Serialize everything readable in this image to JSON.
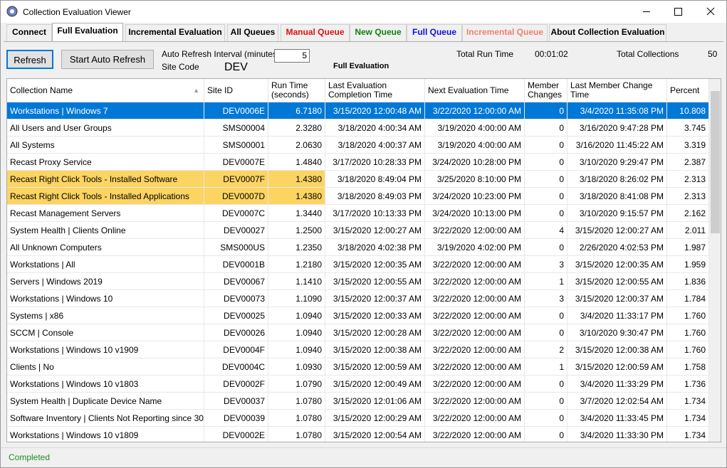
{
  "window": {
    "title": "Collection Evaluation Viewer"
  },
  "tabs": [
    "Connect",
    "Full Evaluation",
    "Incremental Evaluation",
    "All Queues",
    "Manual Queue",
    "New Queue",
    "Full Queue",
    "Incremental Queue",
    "About Collection Evaluation"
  ],
  "toolbar": {
    "refresh": "Refresh",
    "auto_refresh": "Start Auto Refresh",
    "interval_label": "Auto Refresh Interval (minutes)",
    "interval_value": "5",
    "site_code_label": "Site Code",
    "site_code": "DEV",
    "mode": "Full Evaluation",
    "total_run_time_label": "Total Run Time",
    "total_run_time": "00:01:02",
    "total_collections_label": "Total Collections",
    "total_collections": "50"
  },
  "table": {
    "columns": [
      "Collection Name",
      "Site ID",
      "Run Time (seconds)",
      "Last Evaluation Completion Time",
      "Next Evaluation Time",
      "Member Changes",
      "Last Member Change Time",
      "Percent"
    ],
    "rows": [
      [
        "Workstations | Windows 7",
        "DEV0006E",
        "6.7180",
        "3/15/2020 12:00:48 AM",
        "3/22/2020 12:00:00 AM",
        "0",
        "3/4/2020 11:35:08 PM",
        "10.808"
      ],
      [
        "All Users and User Groups",
        "SMS00004",
        "2.3280",
        "3/18/2020 4:00:34 AM",
        "3/19/2020 4:00:00 AM",
        "0",
        "3/16/2020 9:47:28 PM",
        "3.745"
      ],
      [
        "All Systems",
        "SMS00001",
        "2.0630",
        "3/18/2020 4:00:37 AM",
        "3/19/2020 4:00:00 AM",
        "0",
        "3/16/2020 11:45:22 AM",
        "3.319"
      ],
      [
        "Recast Proxy Service",
        "DEV0007E",
        "1.4840",
        "3/17/2020 10:28:33 PM",
        "3/24/2020 10:28:00 PM",
        "0",
        "3/10/2020 9:29:47 PM",
        "2.387"
      ],
      [
        "Recast Right Click Tools - Installed Software",
        "DEV0007F",
        "1.4380",
        "3/18/2020 8:49:04 PM",
        "3/25/2020 8:10:00 PM",
        "0",
        "3/18/2020 8:26:02 PM",
        "2.313"
      ],
      [
        "Recast Right Click Tools - Installed Applications",
        "DEV0007D",
        "1.4380",
        "3/18/2020 8:49:03 PM",
        "3/24/2020 10:23:00 PM",
        "0",
        "3/18/2020 8:41:08 PM",
        "2.313"
      ],
      [
        "Recast Management Servers",
        "DEV0007C",
        "1.3440",
        "3/17/2020 10:13:33 PM",
        "3/24/2020 10:13:00 PM",
        "0",
        "3/10/2020 9:15:57 PM",
        "2.162"
      ],
      [
        "System Health | Clients Online",
        "DEV00027",
        "1.2500",
        "3/15/2020 12:00:27 AM",
        "3/22/2020 12:00:00 AM",
        "4",
        "3/15/2020 12:00:27 AM",
        "2.011"
      ],
      [
        "All Unknown Computers",
        "SMS000US",
        "1.2350",
        "3/18/2020 4:02:38 PM",
        "3/19/2020 4:02:00 PM",
        "0",
        "2/26/2020 4:02:53 PM",
        "1.987"
      ],
      [
        "Workstations | All",
        "DEV0001B",
        "1.2180",
        "3/15/2020 12:00:35 AM",
        "3/22/2020 12:00:00 AM",
        "3",
        "3/15/2020 12:00:35 AM",
        "1.959"
      ],
      [
        "Servers | Windows 2019",
        "DEV00067",
        "1.1410",
        "3/15/2020 12:00:55 AM",
        "3/22/2020 12:00:00 AM",
        "1",
        "3/15/2020 12:00:55 AM",
        "1.836"
      ],
      [
        "Workstations | Windows 10",
        "DEV00073",
        "1.1090",
        "3/15/2020 12:00:37 AM",
        "3/22/2020 12:00:00 AM",
        "3",
        "3/15/2020 12:00:37 AM",
        "1.784"
      ],
      [
        "Systems | x86",
        "DEV00025",
        "1.0940",
        "3/15/2020 12:00:33 AM",
        "3/22/2020 12:00:00 AM",
        "0",
        "3/4/2020 11:33:17 PM",
        "1.760"
      ],
      [
        "SCCM | Console",
        "DEV00026",
        "1.0940",
        "3/15/2020 12:00:28 AM",
        "3/22/2020 12:00:00 AM",
        "0",
        "3/10/2020 9:30:47 PM",
        "1.760"
      ],
      [
        "Workstations | Windows 10 v1909",
        "DEV0004F",
        "1.0940",
        "3/15/2020 12:00:38 AM",
        "3/22/2020 12:00:00 AM",
        "2",
        "3/15/2020 12:00:38 AM",
        "1.760"
      ],
      [
        "Clients | No",
        "DEV0004C",
        "1.0930",
        "3/15/2020 12:00:59 AM",
        "3/22/2020 12:00:00 AM",
        "1",
        "3/15/2020 12:00:59 AM",
        "1.758"
      ],
      [
        "Workstations | Windows 10 v1803",
        "DEV0002F",
        "1.0790",
        "3/15/2020 12:00:49 AM",
        "3/22/2020 12:00:00 AM",
        "0",
        "3/4/2020 11:33:29 PM",
        "1.736"
      ],
      [
        "System Health | Duplicate Device Name",
        "DEV00037",
        "1.0780",
        "3/15/2020 12:01:06 AM",
        "3/22/2020 12:00:00 AM",
        "0",
        "3/7/2020 12:02:54 AM",
        "1.734"
      ],
      [
        "Software Inventory | Clients Not Reporting since 30 Days",
        "DEV00039",
        "1.0780",
        "3/15/2020 12:00:29 AM",
        "3/22/2020 12:00:00 AM",
        "0",
        "3/4/2020 11:33:45 PM",
        "1.734"
      ],
      [
        "Workstations | Windows 10 v1809",
        "DEV0002E",
        "1.0780",
        "3/15/2020 12:00:54 AM",
        "3/22/2020 12:00:00 AM",
        "0",
        "3/4/2020 11:33:30 PM",
        "1.734"
      ]
    ]
  },
  "status": "Completed"
}
